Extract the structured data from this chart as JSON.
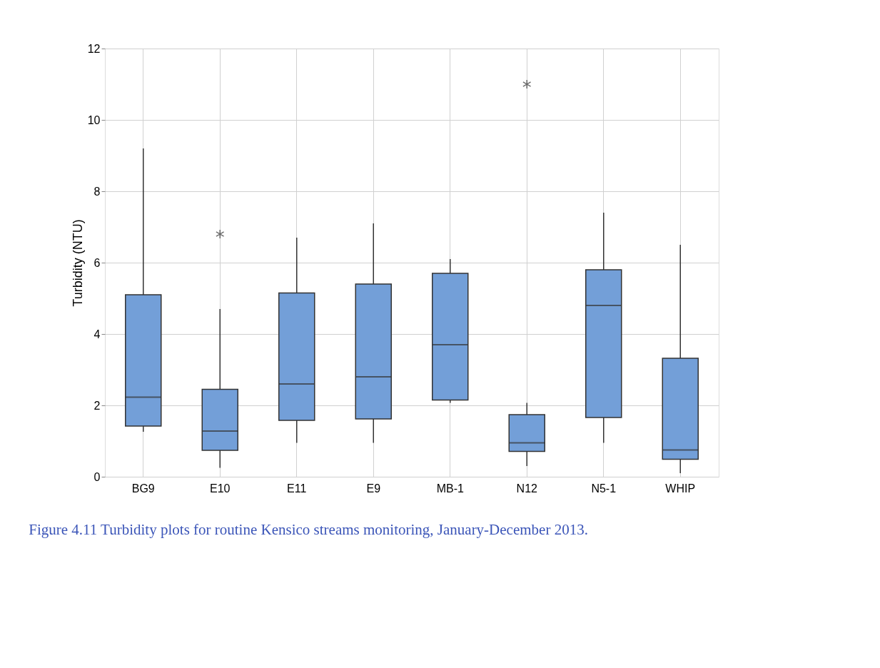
{
  "chart_data": {
    "type": "box",
    "ylabel": "Turbidity (NTU)",
    "categories": [
      "BG9",
      "E10",
      "E11",
      "E9",
      "MB-1",
      "N12",
      "N5-1",
      "WHIP"
    ],
    "boxes": [
      {
        "low": 1.26,
        "q1": 1.42,
        "median": 2.23,
        "q3": 5.1,
        "high": 9.2
      },
      {
        "low": 0.25,
        "q1": 0.74,
        "median": 1.28,
        "q3": 2.45,
        "high": 4.7,
        "outliers": [
          6.8
        ]
      },
      {
        "low": 0.95,
        "q1": 1.58,
        "median": 2.6,
        "q3": 5.15,
        "high": 6.7
      },
      {
        "low": 0.95,
        "q1": 1.62,
        "median": 2.8,
        "q3": 5.4,
        "high": 7.1
      },
      {
        "low": 2.07,
        "q1": 2.15,
        "median": 3.7,
        "q3": 5.7,
        "high": 6.1
      },
      {
        "low": 0.3,
        "q1": 0.71,
        "median": 0.95,
        "q3": 1.74,
        "high": 2.07,
        "outliers": [
          11.0
        ]
      },
      {
        "low": 0.95,
        "q1": 1.66,
        "median": 4.8,
        "q3": 5.8,
        "high": 7.4
      },
      {
        "low": 0.1,
        "q1": 0.49,
        "median": 0.75,
        "q3": 3.32,
        "high": 6.5
      }
    ],
    "color": "#739fd8",
    "ylim": [
      0,
      12
    ],
    "yticks": [
      0,
      2,
      4,
      6,
      8,
      10,
      12
    ],
    "grid": true,
    "annotations": [
      "Figure 4.11  Turbidity plots for routine Kensico streams monitoring, January-December 2013."
    ]
  }
}
